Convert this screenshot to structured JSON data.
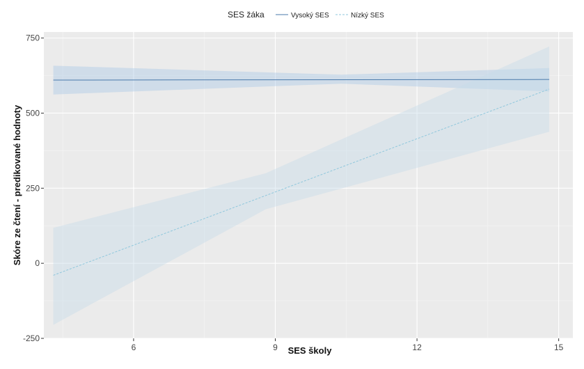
{
  "chart_data": {
    "type": "line",
    "xlabel": "SES školy",
    "ylabel": "Skóre ze čtení - predikované hodnoty",
    "legend": {
      "title": "SES žáka",
      "position": "top"
    },
    "xlim": [
      4.1,
      15.3
    ],
    "ylim": [
      -250,
      770
    ],
    "x_ticks": [
      "6",
      "9",
      "12",
      "15"
    ],
    "y_ticks": [
      "-250",
      "0",
      "250",
      "500",
      "750"
    ],
    "grid": true,
    "series": [
      {
        "name": "Vysoký SES",
        "line_style": "solid",
        "color": "#4a7aab",
        "band_color": "#a9c9e6",
        "x": [
          4.3,
          14.8
        ],
        "y": [
          610,
          612
        ],
        "ci_upper": [
          658,
          628,
          650
        ],
        "ci_lower": [
          562,
          598,
          572
        ],
        "ci_x": [
          4.3,
          10.4,
          14.8
        ]
      },
      {
        "name": "Nízký SES",
        "line_style": "dashed",
        "color": "#8fc7dc",
        "band_color": "#c5dbea",
        "x": [
          4.3,
          14.8
        ],
        "y": [
          -40,
          580
        ],
        "ci_upper": [
          118,
          300,
          722
        ],
        "ci_lower": [
          -205,
          180,
          438
        ],
        "ci_x": [
          4.3,
          8.8,
          14.8
        ]
      }
    ]
  }
}
